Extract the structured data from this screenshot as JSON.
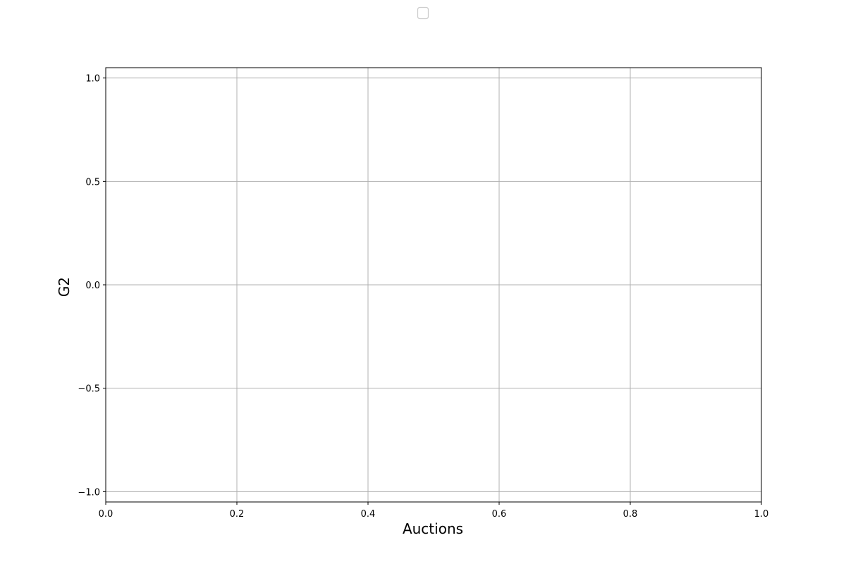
{
  "chart_data": {
    "type": "line",
    "title": "",
    "xlabel": "Auctions",
    "ylabel": "G2",
    "xlim": [
      0.0,
      1.0
    ],
    "ylim": [
      -1.05,
      1.05
    ],
    "x_ticks": [
      0.0,
      0.2,
      0.4,
      0.6,
      0.8,
      1.0
    ],
    "x_tick_labels": [
      "0.0",
      "0.2",
      "0.4",
      "0.6",
      "0.8",
      "1.0"
    ],
    "y_ticks": [
      1.0,
      0.5,
      0.0,
      -0.5,
      -1.0
    ],
    "y_tick_labels": [
      "1.0",
      "0.5",
      "0.0",
      "−0.5",
      "−1.0"
    ],
    "grid": true,
    "legend": {
      "placement": "upper-center",
      "entries": []
    },
    "series": [],
    "colors": {
      "grid": "#b0b0b0",
      "axes": "#000000",
      "legend_border": "#cccccc"
    }
  }
}
